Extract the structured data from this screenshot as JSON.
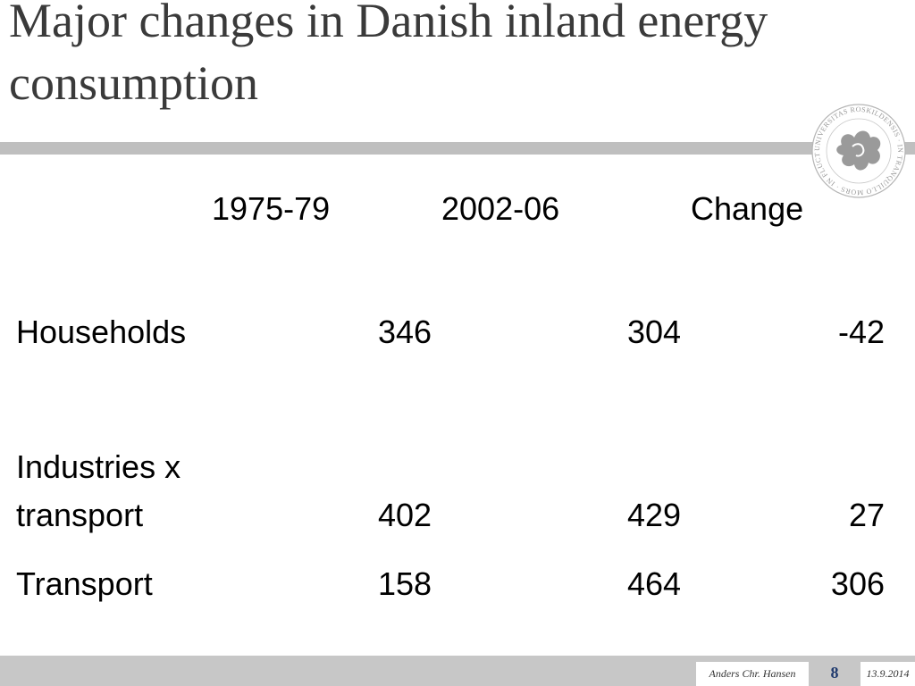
{
  "slide": {
    "title": "Major changes in Danish inland energy consumption"
  },
  "table": {
    "headers": [
      "1975-79",
      "2002-06",
      "Change"
    ],
    "rows": [
      {
        "label_lines": [
          "Households"
        ],
        "values": [
          "346",
          "304",
          "-42"
        ]
      },
      {
        "label_lines": [
          "Industries x",
          "transport"
        ],
        "values": [
          "402",
          "429",
          "27"
        ]
      },
      {
        "label_lines": [
          "Transport"
        ],
        "values": [
          "158",
          "464",
          "306"
        ]
      }
    ]
  },
  "footer": {
    "author": "Anders Chr. Hansen",
    "page_number": "8",
    "date": "13.9.2014"
  },
  "seal": {
    "inscription": "UNIVERSITAS ROSKILDENSIS · IN TRANQUILLO MORS · IN FLUCTU VITA"
  },
  "colors": {
    "title_text": "#3a3a3a",
    "rule": "#bfbfbf",
    "footer_bar": "#c7c7c7",
    "page_number": "#1f3a6e",
    "seal": "#9a9a9a"
  }
}
